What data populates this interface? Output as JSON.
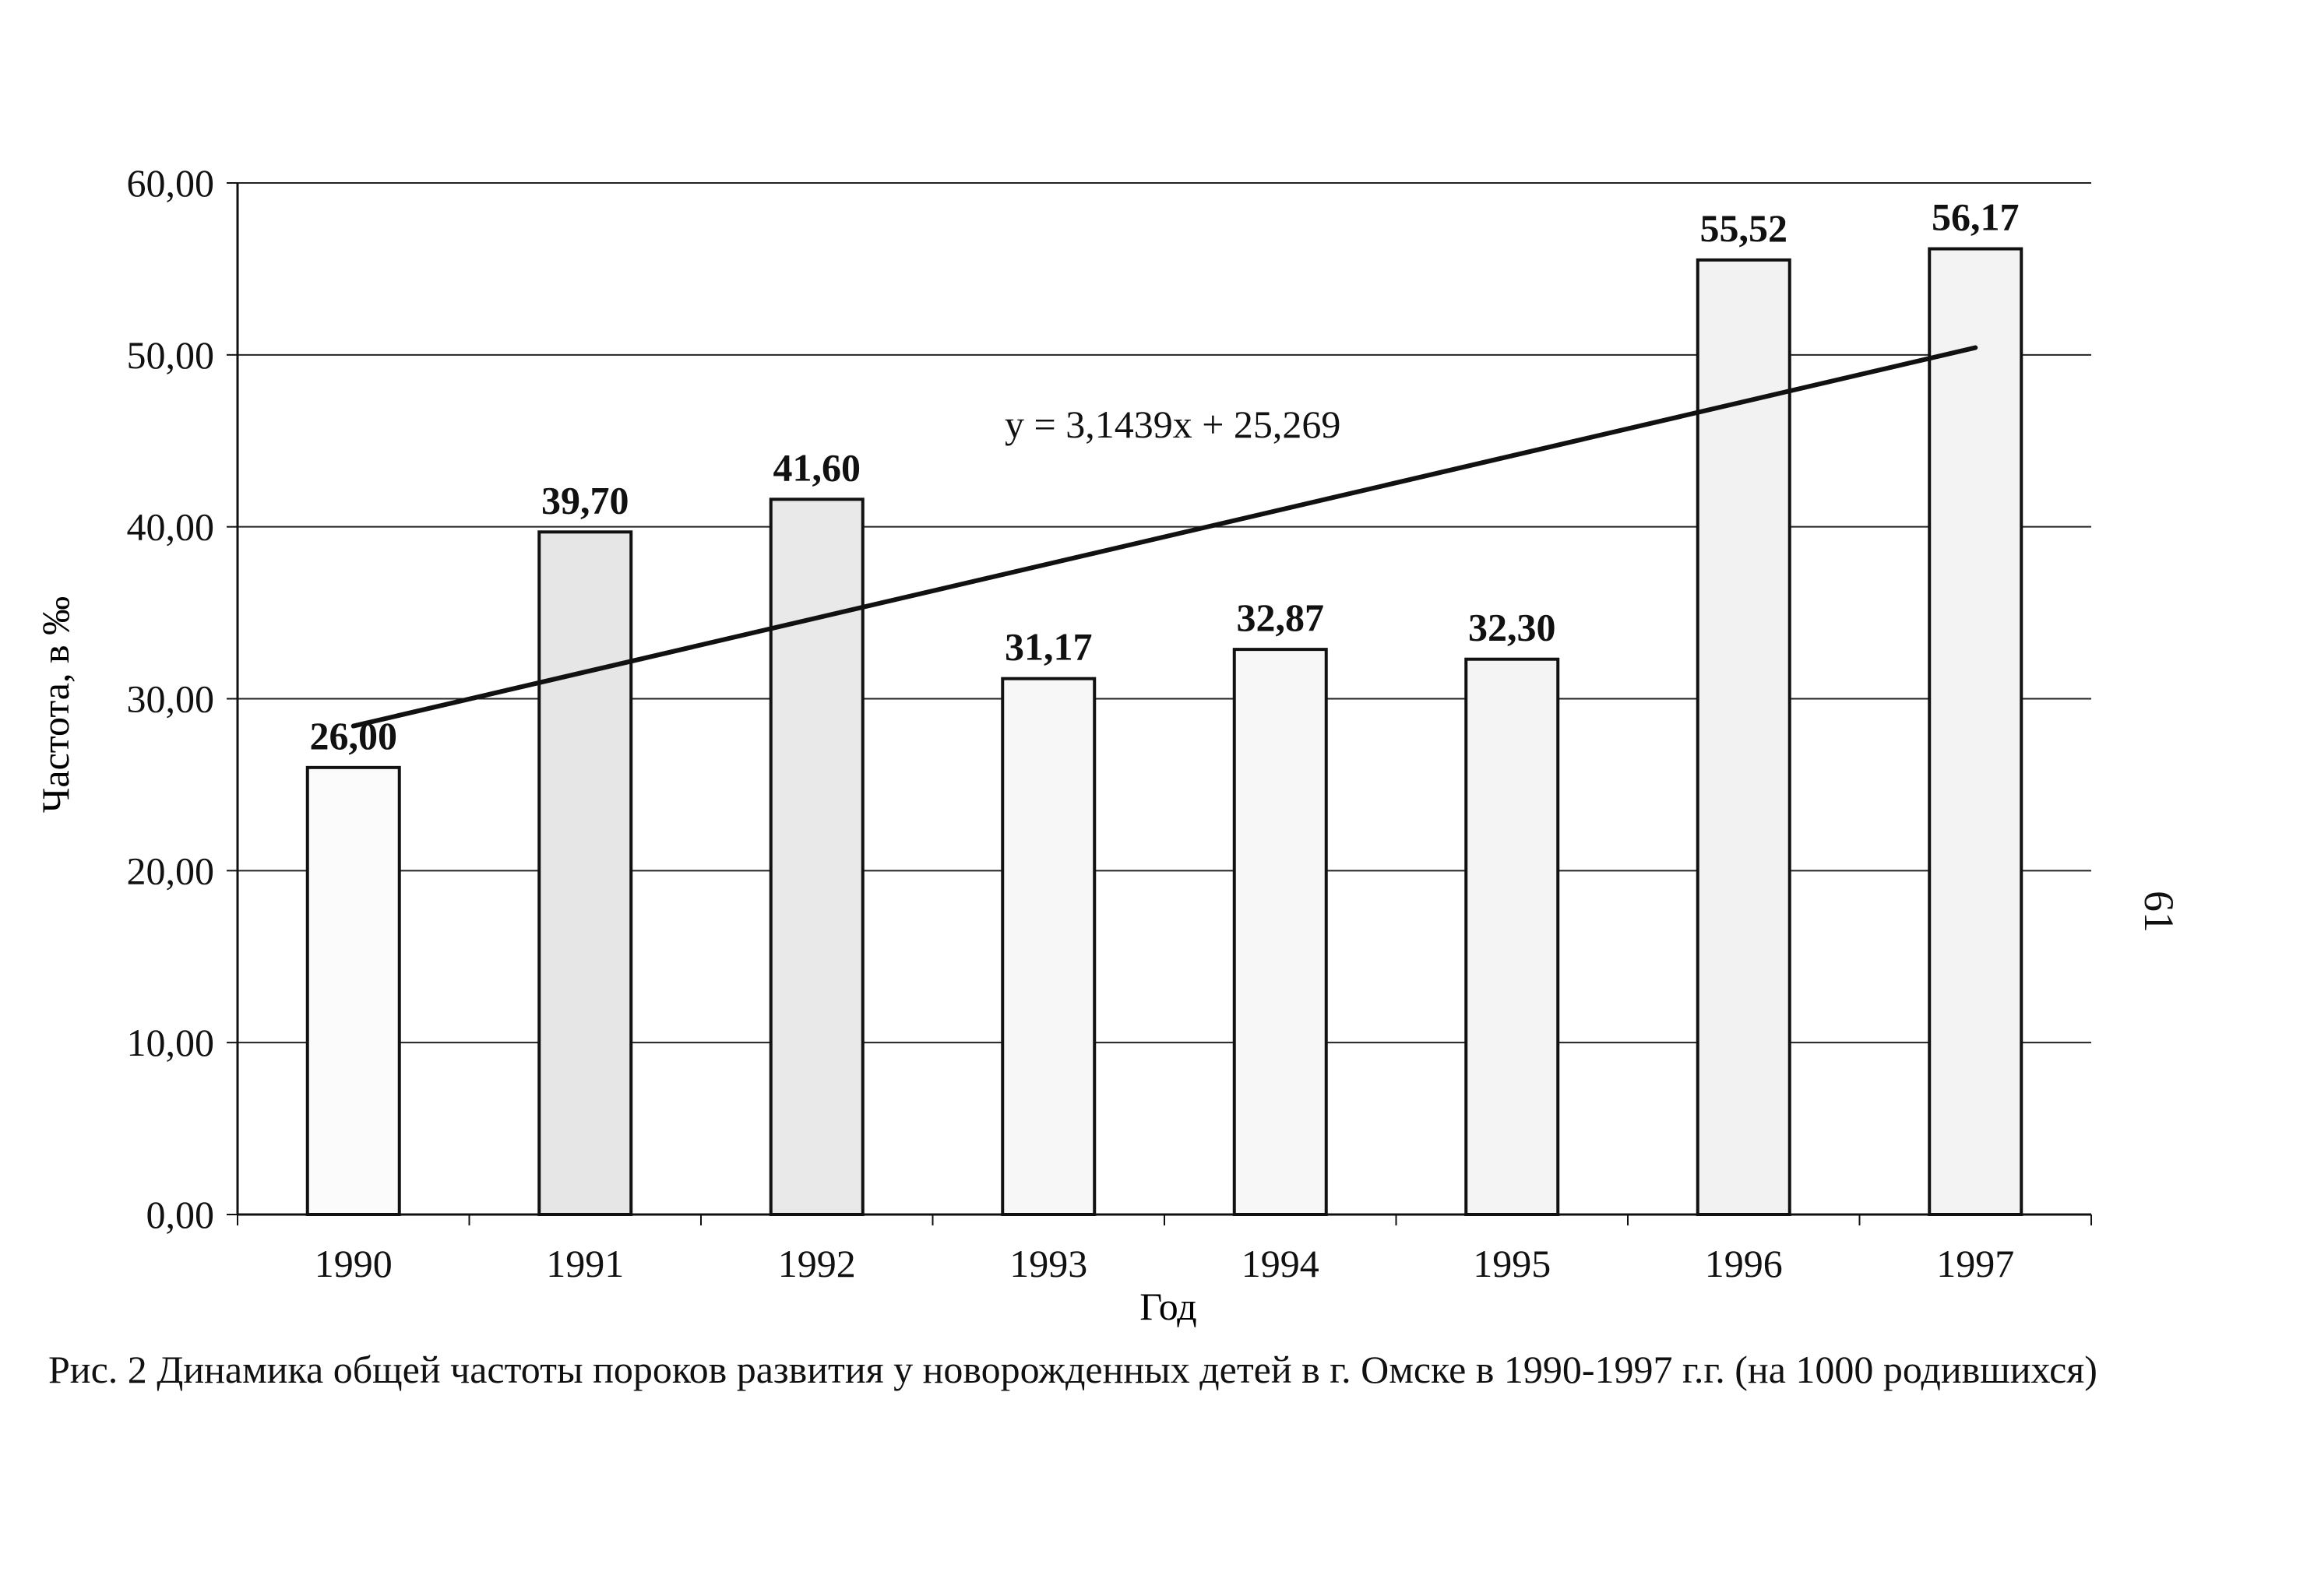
{
  "chart_data": {
    "type": "bar",
    "categories": [
      "1990",
      "1991",
      "1992",
      "1993",
      "1994",
      "1995",
      "1996",
      "1997"
    ],
    "values": [
      26.0,
      39.7,
      41.6,
      31.17,
      32.87,
      32.3,
      55.52,
      56.17
    ],
    "value_labels": [
      "26,00",
      "39,70",
      "41,60",
      "31,17",
      "32,87",
      "32,30",
      "55,52",
      "56,17"
    ],
    "xlabel": "Год",
    "ylabel": "Частота, в ‰",
    "ylim": [
      0,
      60
    ],
    "y_ticks": [
      0,
      10,
      20,
      30,
      40,
      50,
      60
    ],
    "y_tick_labels": [
      "0,00",
      "10,00",
      "20,00",
      "30,00",
      "40,00",
      "50,00",
      "60,00"
    ],
    "grid": true,
    "legend": "none",
    "trendline": {
      "type": "linear",
      "slope": 3.1439,
      "intercept": 25.269,
      "equation_label": "y = 3,1439x + 25,269"
    },
    "bar_fill_colors": [
      "#fbfbfb",
      "#e6e6e6",
      "#e9e9e9",
      "#f7f7f7",
      "#f7f7f7",
      "#f4f4f4",
      "#f2f2f2",
      "#f3f3f3"
    ],
    "bar_stroke_color": "#111111",
    "grid_color": "#222222"
  },
  "caption": {
    "text": "Рис. 2 Динамика общей частоты пороков развития у новорожденных детей в г. Омске в 1990-1997 г.г. (на 1000 родившихся)"
  },
  "page_number": "61"
}
